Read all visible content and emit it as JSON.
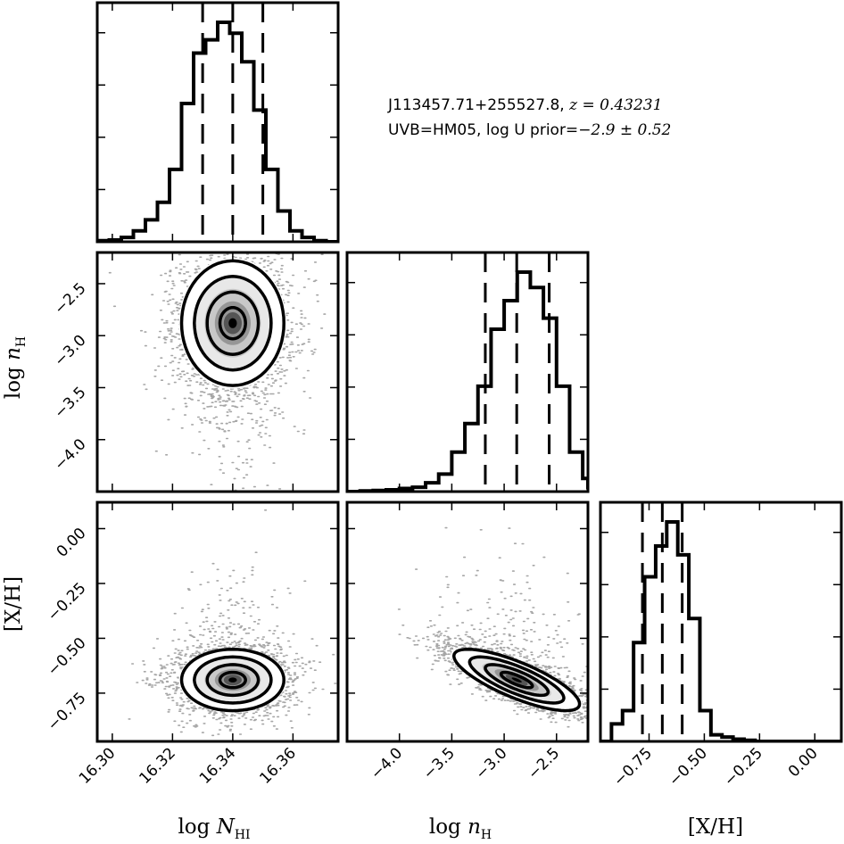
{
  "annotation": {
    "line1_prefix": "J113457.71+255527.8, ",
    "line1_math": "z = 0.43231",
    "line2_prefix": "UVB=HM05, log U prior=",
    "line2_math": "−2.9 ± 0.52"
  },
  "chart_data": {
    "type": "corner",
    "parameters": [
      {
        "key": "logN",
        "label_main": "log N",
        "label_sub": "HI",
        "range": [
          16.295,
          16.375
        ],
        "ticks": [
          16.3,
          16.32,
          16.34,
          16.36
        ],
        "tick_labels": [
          "16.30",
          "16.32",
          "16.34",
          "16.36"
        ],
        "quantiles": [
          16.33,
          16.34,
          16.35
        ],
        "hist": {
          "edges": [
            16.295,
            16.299,
            16.303,
            16.307,
            16.311,
            16.315,
            16.319,
            16.323,
            16.327,
            16.331,
            16.335,
            16.339,
            16.343,
            16.347,
            16.351,
            16.355,
            16.359,
            16.363,
            16.367,
            16.371,
            16.375
          ],
          "counts": [
            0.005,
            0.008,
            0.02,
            0.05,
            0.1,
            0.18,
            0.33,
            0.63,
            0.86,
            0.92,
            1.0,
            0.95,
            0.82,
            0.6,
            0.33,
            0.14,
            0.05,
            0.02,
            0.005,
            0.0
          ]
        },
        "center": 16.34,
        "sigma": 0.0085
      },
      {
        "key": "logn",
        "label_main": "log n",
        "label_sub": "H",
        "range": [
          -4.5,
          -2.2
        ],
        "ticks": [
          -4.0,
          -3.5,
          -3.0,
          -2.5
        ],
        "tick_labels": [
          "−4.0",
          "−3.5",
          "−3.0",
          "−2.5"
        ],
        "quantiles": [
          -3.18,
          -2.88,
          -2.57
        ],
        "hist": {
          "edges": [
            -4.5,
            -4.375,
            -4.25,
            -4.125,
            -4.0,
            -3.875,
            -3.75,
            -3.625,
            -3.5,
            -3.375,
            -3.25,
            -3.125,
            -3.0,
            -2.875,
            -2.75,
            -2.625,
            -2.5,
            -2.375,
            -2.25,
            -2.2
          ],
          "counts": [
            0.0,
            0.003,
            0.005,
            0.008,
            0.014,
            0.02,
            0.04,
            0.08,
            0.18,
            0.31,
            0.48,
            0.74,
            0.87,
            1.0,
            0.93,
            0.79,
            0.48,
            0.18,
            0.06,
            0.01
          ]
        },
        "center": -2.88,
        "sigma": 0.3
      },
      {
        "key": "XH",
        "label_main": "[X/H]",
        "label_sub": "",
        "range": [
          -0.97,
          0.12
        ],
        "ticks": [
          -0.75,
          -0.5,
          -0.25,
          0.0
        ],
        "tick_labels": [
          "−0.75",
          "−0.50",
          "−0.25",
          "0.00"
        ],
        "quantiles": [
          -0.78,
          -0.69,
          -0.6
        ],
        "hist": {
          "edges": [
            -0.97,
            -0.92,
            -0.87,
            -0.82,
            -0.77,
            -0.72,
            -0.67,
            -0.62,
            -0.57,
            -0.52,
            -0.47,
            -0.42,
            -0.37,
            -0.32,
            -0.27,
            -0.22,
            -0.17,
            -0.12,
            -0.07,
            -0.02,
            0.03,
            0.08,
            0.12
          ],
          "counts": [
            0.0,
            0.08,
            0.14,
            0.45,
            0.75,
            0.89,
            1.0,
            0.85,
            0.56,
            0.14,
            0.03,
            0.02,
            0.01,
            0.005,
            0.0,
            0.0,
            0.0,
            0.0,
            0.0,
            0.0,
            0.0,
            0.0
          ]
        },
        "center": -0.69,
        "sigma": 0.07
      }
    ],
    "joint": [
      {
        "x": "logN",
        "y": "logn",
        "correlation": 0.0
      },
      {
        "x": "logN",
        "y": "XH",
        "correlation": 0.0
      },
      {
        "x": "logn",
        "y": "XH",
        "correlation": -0.78
      }
    ],
    "contour_levels_sigma": [
      0.5,
      1.0,
      1.5,
      2.0
    ],
    "line_color": "#000000",
    "point_color": "#000000",
    "background": "#ffffff"
  }
}
